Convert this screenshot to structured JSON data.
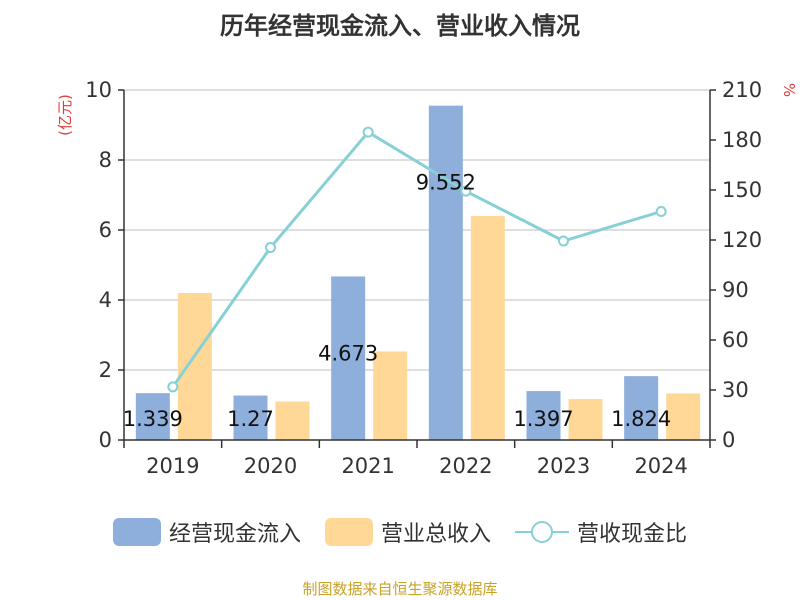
{
  "chart_data": {
    "type": "bar",
    "title": "历年经营现金流入、营业收入情况",
    "categories": [
      "2019",
      "2020",
      "2021",
      "2022",
      "2023",
      "2024"
    ],
    "y_left": {
      "label": "(亿元)",
      "ylim": [
        0,
        10
      ],
      "ticks": [
        "0",
        "2",
        "4",
        "6",
        "8",
        "10"
      ]
    },
    "y_right": {
      "label": "%",
      "ylim": [
        0,
        210
      ],
      "ticks": [
        "0",
        "30",
        "60",
        "90",
        "120",
        "150",
        "180",
        "210"
      ]
    },
    "series": [
      {
        "name": "经营现金流入",
        "type": "bar",
        "axis": "left",
        "color": "#8eaedc",
        "values": [
          1.339,
          1.27,
          4.673,
          9.552,
          1.397,
          1.824
        ],
        "labels": [
          "1.339",
          "1.27",
          "4.673",
          "9.552",
          "1.397",
          "1.824"
        ]
      },
      {
        "name": "营业总收入",
        "type": "bar",
        "axis": "left",
        "color": "#ffd898",
        "values": [
          4.2,
          1.1,
          2.53,
          6.4,
          1.17,
          1.33
        ]
      },
      {
        "name": "营收现金比",
        "type": "line",
        "axis": "right",
        "color": "#86d0d6",
        "values": [
          31.9,
          115.5,
          184.7,
          149.3,
          119.4,
          137.1
        ]
      }
    ],
    "grid": true,
    "legend": "bottom"
  },
  "source": "制图数据来自恒生聚源数据库",
  "colors": {
    "left_axis_label": "#e03c3c",
    "right_axis_label": "#e03c3c",
    "grid": "#cccccc",
    "axis": "#333333"
  }
}
